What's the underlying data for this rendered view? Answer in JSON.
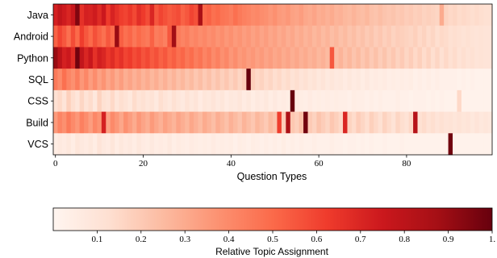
{
  "chart_data": {
    "type": "heatmap",
    "categories": [
      "Java",
      "Android",
      "Python",
      "SQL",
      "CSS",
      "Build",
      "VCS"
    ],
    "x": {
      "label": "Question Types",
      "range": [
        0,
        99
      ],
      "ticks": [
        0,
        20,
        40,
        60,
        80
      ],
      "tick_labels": [
        "0",
        "20",
        "40",
        "60",
        "80"
      ],
      "count": 100
    },
    "colorbar": {
      "label": "Relative Topic Assignment",
      "range": [
        0.0,
        1.0
      ],
      "ticks": [
        0.1,
        0.2,
        0.3,
        0.4,
        0.5,
        0.6,
        0.7,
        0.8,
        0.9,
        1.0
      ],
      "tick_labels": [
        "0.1",
        "0.2",
        "0.3",
        "0.4",
        "0.5",
        "0.6",
        "0.7",
        "0.8",
        "0.9",
        "1."
      ],
      "colormap": [
        "#fff5f0",
        "#fee0d2",
        "#fcbba1",
        "#fc9272",
        "#fb6a4a",
        "#ef3b2c",
        "#cb181d",
        "#a50f15",
        "#67000d"
      ]
    },
    "values": [
      [
        0.72,
        0.78,
        0.74,
        0.7,
        0.76,
        0.95,
        0.66,
        0.72,
        0.71,
        0.74,
        0.68,
        0.75,
        0.63,
        0.71,
        0.66,
        0.62,
        0.6,
        0.64,
        0.59,
        0.67,
        0.63,
        0.58,
        0.7,
        0.55,
        0.6,
        0.57,
        0.54,
        0.56,
        0.58,
        0.52,
        0.55,
        0.6,
        0.57,
        0.86,
        0.5,
        0.52,
        0.48,
        0.5,
        0.47,
        0.46,
        0.44,
        0.48,
        0.45,
        0.43,
        0.42,
        0.4,
        0.41,
        0.39,
        0.38,
        0.36,
        0.38,
        0.35,
        0.34,
        0.36,
        0.33,
        0.32,
        0.34,
        0.31,
        0.3,
        0.32,
        0.29,
        0.3,
        0.28,
        0.3,
        0.27,
        0.28,
        0.26,
        0.25,
        0.27,
        0.25,
        0.24,
        0.26,
        0.23,
        0.22,
        0.24,
        0.22,
        0.21,
        0.22,
        0.2,
        0.21,
        0.19,
        0.2,
        0.18,
        0.19,
        0.17,
        0.18,
        0.17,
        0.16,
        0.3,
        0.17,
        0.15,
        0.16,
        0.14,
        0.15,
        0.14,
        0.13,
        0.14,
        0.13,
        0.12,
        0.12
      ],
      [
        0.52,
        0.6,
        0.55,
        0.48,
        0.58,
        0.5,
        0.62,
        0.55,
        0.5,
        0.57,
        0.52,
        0.48,
        0.55,
        0.5,
        0.9,
        0.53,
        0.48,
        0.51,
        0.46,
        0.5,
        0.47,
        0.45,
        0.52,
        0.44,
        0.46,
        0.43,
        0.55,
        0.88,
        0.45,
        0.42,
        0.44,
        0.4,
        0.42,
        0.39,
        0.41,
        0.38,
        0.4,
        0.37,
        0.39,
        0.36,
        0.38,
        0.35,
        0.37,
        0.34,
        0.36,
        0.33,
        0.35,
        0.32,
        0.34,
        0.31,
        0.33,
        0.3,
        0.32,
        0.29,
        0.31,
        0.28,
        0.3,
        0.27,
        0.29,
        0.26,
        0.28,
        0.25,
        0.27,
        0.24,
        0.26,
        0.23,
        0.25,
        0.22,
        0.24,
        0.21,
        0.23,
        0.2,
        0.22,
        0.19,
        0.21,
        0.18,
        0.2,
        0.17,
        0.19,
        0.18,
        0.17,
        0.16,
        0.18,
        0.15,
        0.17,
        0.14,
        0.16,
        0.13,
        0.15,
        0.14,
        0.12,
        0.13,
        0.12,
        0.11,
        0.12,
        0.11,
        0.1,
        0.11,
        0.1,
        0.1
      ],
      [
        0.9,
        0.8,
        0.72,
        0.75,
        0.68,
        0.98,
        0.78,
        0.7,
        0.76,
        0.66,
        0.73,
        0.7,
        0.64,
        0.68,
        0.62,
        0.66,
        0.6,
        0.63,
        0.58,
        0.61,
        0.56,
        0.59,
        0.54,
        0.57,
        0.52,
        0.55,
        0.5,
        0.53,
        0.48,
        0.51,
        0.46,
        0.49,
        0.44,
        0.47,
        0.42,
        0.45,
        0.4,
        0.43,
        0.38,
        0.41,
        0.36,
        0.39,
        0.35,
        0.37,
        0.34,
        0.36,
        0.33,
        0.35,
        0.32,
        0.34,
        0.31,
        0.33,
        0.3,
        0.32,
        0.29,
        0.31,
        0.28,
        0.3,
        0.27,
        0.29,
        0.26,
        0.28,
        0.25,
        0.55,
        0.24,
        0.27,
        0.23,
        0.26,
        0.22,
        0.25,
        0.21,
        0.24,
        0.2,
        0.23,
        0.19,
        0.22,
        0.18,
        0.21,
        0.17,
        0.2,
        0.16,
        0.19,
        0.15,
        0.18,
        0.14,
        0.17,
        0.13,
        0.16,
        0.12,
        0.15,
        0.12,
        0.14,
        0.11,
        0.13,
        0.11,
        0.12,
        0.1,
        0.11,
        0.1,
        0.1
      ],
      [
        0.45,
        0.4,
        0.48,
        0.42,
        0.38,
        0.44,
        0.36,
        0.41,
        0.34,
        0.39,
        0.33,
        0.37,
        0.31,
        0.35,
        0.3,
        0.34,
        0.29,
        0.32,
        0.28,
        0.31,
        0.27,
        0.3,
        0.26,
        0.29,
        0.25,
        0.28,
        0.24,
        0.27,
        0.23,
        0.26,
        0.22,
        0.25,
        0.21,
        0.24,
        0.2,
        0.23,
        0.19,
        0.22,
        0.18,
        0.21,
        0.17,
        0.2,
        0.16,
        0.19,
        1.0,
        0.18,
        0.15,
        0.17,
        0.14,
        0.16,
        0.13,
        0.15,
        0.12,
        0.14,
        0.11,
        0.13,
        0.1,
        0.12,
        0.09,
        0.11,
        0.08,
        0.1,
        0.07,
        0.09,
        0.07,
        0.08,
        0.06,
        0.08,
        0.06,
        0.07,
        0.05,
        0.07,
        0.05,
        0.06,
        0.05,
        0.06,
        0.04,
        0.05,
        0.04,
        0.05,
        0.04,
        0.05,
        0.03,
        0.04,
        0.03,
        0.04,
        0.03,
        0.04,
        0.03,
        0.03,
        0.03,
        0.03,
        0.02,
        0.03,
        0.02,
        0.03,
        0.02,
        0.02,
        0.02,
        0.02
      ],
      [
        0.12,
        0.15,
        0.1,
        0.18,
        0.13,
        0.09,
        0.16,
        0.11,
        0.14,
        0.08,
        0.17,
        0.12,
        0.1,
        0.15,
        0.09,
        0.13,
        0.11,
        0.08,
        0.14,
        0.1,
        0.12,
        0.09,
        0.11,
        0.07,
        0.13,
        0.1,
        0.08,
        0.12,
        0.09,
        0.07,
        0.11,
        0.08,
        0.1,
        0.06,
        0.09,
        0.08,
        0.1,
        0.07,
        0.09,
        0.06,
        0.08,
        0.07,
        0.09,
        0.06,
        0.08,
        0.05,
        0.07,
        0.06,
        0.08,
        0.05,
        0.07,
        0.05,
        0.06,
        0.05,
        1.0,
        0.06,
        0.05,
        0.04,
        0.06,
        0.04,
        0.05,
        0.04,
        0.05,
        0.04,
        0.05,
        0.04,
        0.04,
        0.03,
        0.05,
        0.04,
        0.04,
        0.03,
        0.04,
        0.03,
        0.04,
        0.03,
        0.03,
        0.03,
        0.04,
        0.03,
        0.03,
        0.02,
        0.03,
        0.03,
        0.03,
        0.02,
        0.03,
        0.02,
        0.03,
        0.02,
        0.02,
        0.02,
        0.15,
        0.02,
        0.02,
        0.02,
        0.02,
        0.02,
        0.02,
        0.02
      ],
      [
        0.35,
        0.42,
        0.38,
        0.45,
        0.4,
        0.36,
        0.43,
        0.39,
        0.34,
        0.41,
        0.37,
        0.72,
        0.33,
        0.4,
        0.36,
        0.31,
        0.38,
        0.34,
        0.3,
        0.36,
        0.32,
        0.29,
        0.35,
        0.31,
        0.28,
        0.33,
        0.3,
        0.27,
        0.32,
        0.29,
        0.26,
        0.31,
        0.28,
        0.25,
        0.3,
        0.27,
        0.24,
        0.29,
        0.26,
        0.23,
        0.28,
        0.25,
        0.22,
        0.27,
        0.24,
        0.21,
        0.26,
        0.23,
        0.2,
        0.25,
        0.22,
        0.62,
        0.19,
        0.85,
        0.21,
        0.18,
        0.23,
        0.98,
        0.2,
        0.17,
        0.22,
        0.19,
        0.16,
        0.21,
        0.18,
        0.15,
        0.7,
        0.17,
        0.14,
        0.19,
        0.16,
        0.13,
        0.18,
        0.15,
        0.12,
        0.17,
        0.14,
        0.11,
        0.16,
        0.13,
        0.11,
        0.15,
        0.82,
        0.12,
        0.14,
        0.11,
        0.13,
        0.1,
        0.12,
        0.1,
        0.11,
        0.09,
        0.11,
        0.09,
        0.1,
        0.08,
        0.1,
        0.08,
        0.09,
        0.08
      ],
      [
        0.05,
        0.07,
        0.06,
        0.08,
        0.05,
        0.09,
        0.07,
        0.06,
        0.08,
        0.05,
        0.1,
        0.07,
        0.06,
        0.09,
        0.05,
        0.08,
        0.06,
        0.07,
        0.05,
        0.08,
        0.06,
        0.05,
        0.07,
        0.05,
        0.06,
        0.05,
        0.07,
        0.04,
        0.06,
        0.05,
        0.04,
        0.06,
        0.05,
        0.04,
        0.05,
        0.04,
        0.06,
        0.04,
        0.05,
        0.04,
        0.05,
        0.03,
        0.05,
        0.04,
        0.03,
        0.05,
        0.04,
        0.03,
        0.04,
        0.03,
        0.04,
        0.03,
        0.05,
        0.03,
        0.04,
        0.03,
        0.04,
        0.03,
        0.03,
        0.04,
        0.03,
        0.03,
        0.03,
        0.04,
        0.03,
        0.03,
        0.02,
        0.03,
        0.03,
        0.02,
        0.03,
        0.02,
        0.03,
        0.02,
        0.02,
        0.03,
        0.02,
        0.02,
        0.02,
        0.03,
        0.02,
        0.02,
        0.02,
        0.02,
        0.02,
        0.02,
        0.02,
        0.02,
        0.02,
        0.02,
        0.98,
        0.02,
        0.02,
        0.02,
        0.02,
        0.02,
        0.02,
        0.02,
        0.02,
        0.02
      ]
    ]
  }
}
